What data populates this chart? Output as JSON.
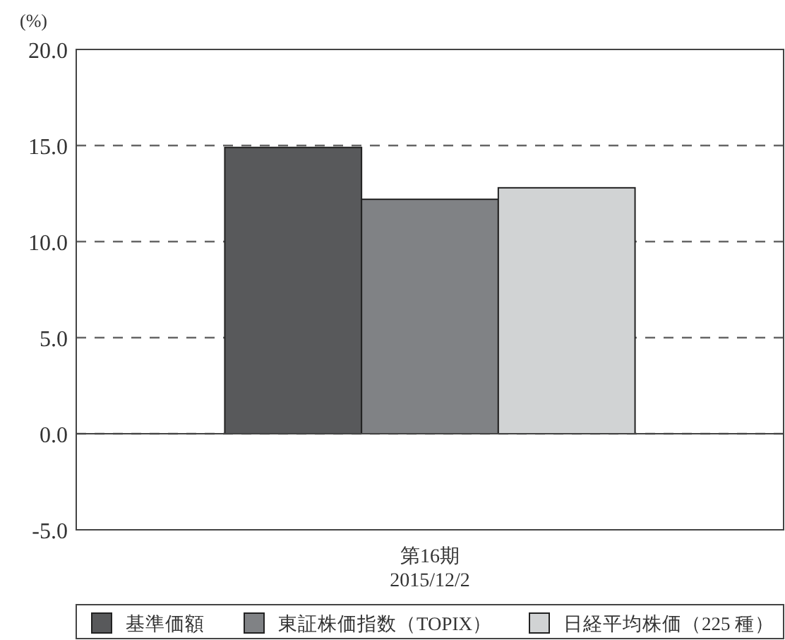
{
  "chart_data": {
    "type": "bar",
    "ylabel": "(%)",
    "categories": [
      "第16期\n2015/12/2"
    ],
    "series": [
      {
        "name": "基準価額",
        "color": "#58595b",
        "values": [
          14.9
        ]
      },
      {
        "name": "東証株価指数（TOPIX）",
        "color": "#808285",
        "values": [
          12.2
        ]
      },
      {
        "name": "日経平均株価（225 種）",
        "color": "#d1d3d4",
        "values": [
          12.8
        ]
      }
    ],
    "ylim": [
      -5,
      20
    ],
    "yticks": [
      {
        "value": -5,
        "label": "-5.0"
      },
      {
        "value": 0,
        "label": "0.0"
      },
      {
        "value": 5,
        "label": "5.0"
      },
      {
        "value": 10,
        "label": "10.0"
      },
      {
        "value": 15,
        "label": "15.0"
      },
      {
        "value": 20,
        "label": "20.0"
      }
    ],
    "grid": "y",
    "legend": "bottom"
  }
}
